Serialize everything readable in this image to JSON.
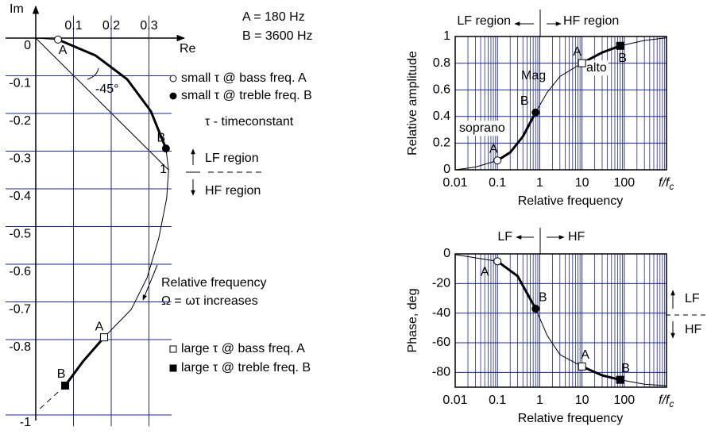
{
  "chart_data": [
    {
      "type": "line",
      "xlabel": "Re",
      "ylabel": "Im",
      "xlim": [
        -0.08,
        0.36
      ],
      "ylim": [
        -1.03,
        0.06
      ],
      "xticks": [
        0.1,
        0.2,
        0.3
      ],
      "yticks": [
        0,
        -0.1,
        -0.2,
        -0.3,
        -0.4,
        -0.5,
        -0.6,
        -0.7,
        -0.8,
        -1
      ],
      "grid": true,
      "grid_color": "#1f2a8f",
      "series": [
        {
          "color": "#000000",
          "width": 1,
          "x": [
            0,
            0.059,
            0.158,
            0.242,
            0.305,
            0.345,
            0.352,
            0.347,
            0.326,
            0.295,
            0.253,
            0.181,
            0.126,
            0.078
          ],
          "y": [
            0,
            -0.004,
            -0.046,
            -0.109,
            -0.194,
            -0.293,
            -0.35,
            -0.425,
            -0.531,
            -0.636,
            -0.72,
            -0.794,
            -0.857,
            -0.922
          ]
        },
        {
          "color": "#000000",
          "width": 3,
          "x": [
            0.059,
            0.158,
            0.242,
            0.305,
            0.345
          ],
          "y": [
            -0.004,
            -0.046,
            -0.109,
            -0.194,
            -0.293
          ]
        },
        {
          "color": "#000000",
          "width": 3,
          "x": [
            0.181,
            0.126,
            0.078
          ],
          "y": [
            -0.794,
            -0.857,
            -0.922
          ]
        },
        {
          "color": "#000000",
          "width": 1,
          "dash": true,
          "x": [
            0.078,
            0.004
          ],
          "y": [
            -0.922,
            -0.99
          ]
        }
      ],
      "points": [
        {
          "label": "A",
          "x": 0.059,
          "y": -0.004,
          "marker": "open-circle"
        },
        {
          "label": "B",
          "x": 0.345,
          "y": -0.293,
          "marker": "filled-circle"
        },
        {
          "label": "A",
          "x": 0.181,
          "y": -0.794,
          "marker": "open-square"
        },
        {
          "label": "B",
          "x": 0.078,
          "y": -0.922,
          "marker": "filled-square"
        }
      ],
      "annotations": [
        "A = 180 Hz",
        "B = 3600 Hz",
        "small τ @ bass freq. A",
        "small τ @ treble freq. B",
        "τ - timeconstant",
        "LF region",
        "HF region",
        "-45°",
        "1",
        "Relative frequency",
        "Ω = ωτ  increases",
        "large τ @ bass freq. A",
        "large τ @ treble freq. B"
      ]
    },
    {
      "type": "line",
      "xscale": "log",
      "xlabel": "Relative frequency",
      "ylabel": "Relative amplitude",
      "x_unit": {
        "base": "f/f",
        "sub": "c"
      },
      "xlim": [
        0.01,
        1000
      ],
      "ylim": [
        0,
        1
      ],
      "xticks": [
        0.01,
        0.1,
        1,
        10,
        100
      ],
      "yticks": [
        0,
        0.2,
        0.4,
        0.6,
        0.8,
        1
      ],
      "grid": true,
      "minor_grid": true,
      "grid_color": "#1f2a8f",
      "series": [
        {
          "color": "#000000",
          "width": 1,
          "x": [
            0.01,
            0.03,
            0.1,
            0.2,
            0.4,
            0.8,
            1.5,
            3,
            10,
            30,
            80,
            300,
            1000
          ],
          "y": [
            0,
            0.02,
            0.07,
            0.13,
            0.25,
            0.43,
            0.58,
            0.7,
            0.8,
            0.88,
            0.93,
            0.97,
            0.99
          ]
        },
        {
          "color": "#000000",
          "width": 3,
          "x": [
            0.1,
            0.2,
            0.4,
            0.8
          ],
          "y": [
            0.07,
            0.13,
            0.25,
            0.43
          ]
        },
        {
          "color": "#000000",
          "width": 3,
          "x": [
            10,
            30,
            80
          ],
          "y": [
            0.8,
            0.88,
            0.93
          ]
        }
      ],
      "points": [
        {
          "label": "A",
          "x": 0.1,
          "y": 0.07,
          "marker": "open-circle"
        },
        {
          "label": "B",
          "x": 0.8,
          "y": 0.43,
          "marker": "filled-circle"
        },
        {
          "label": "A",
          "x": 10,
          "y": 0.8,
          "marker": "open-square"
        },
        {
          "label": "B",
          "x": 80,
          "y": 0.93,
          "marker": "filled-square"
        }
      ],
      "annotations": [
        "LF region",
        "HF region",
        "Mag",
        "soprano",
        "alto"
      ]
    },
    {
      "type": "line",
      "xscale": "log",
      "xlabel": "Relative frequency",
      "ylabel": "Phase, deg",
      "x_unit": {
        "base": "f/f",
        "sub": "c"
      },
      "xlim": [
        0.01,
        1000
      ],
      "ylim": [
        -90,
        0
      ],
      "xticks": [
        0.01,
        0.1,
        1,
        10,
        100
      ],
      "yticks": [
        0,
        -20,
        -40,
        -60,
        -80
      ],
      "grid": true,
      "minor_grid": true,
      "grid_color": "#1f2a8f",
      "series": [
        {
          "color": "#000000",
          "width": 1,
          "x": [
            0.01,
            0.1,
            0.3,
            0.8,
            1.5,
            3,
            10,
            30,
            80,
            300,
            1000
          ],
          "y": [
            -0.5,
            -5,
            -15,
            -37,
            -55,
            -68,
            -76,
            -82,
            -85,
            -88,
            -89
          ]
        },
        {
          "color": "#000000",
          "width": 3,
          "x": [
            0.1,
            0.3,
            0.8
          ],
          "y": [
            -5,
            -15,
            -37
          ]
        },
        {
          "color": "#000000",
          "width": 3,
          "x": [
            10,
            30,
            80
          ],
          "y": [
            -76,
            -82,
            -85
          ]
        }
      ],
      "points": [
        {
          "label": "A",
          "x": 0.1,
          "y": -5,
          "marker": "open-circle"
        },
        {
          "label": "B",
          "x": 0.8,
          "y": -37,
          "marker": "filled-circle"
        },
        {
          "label": "A",
          "x": 10,
          "y": -76,
          "marker": "open-square"
        },
        {
          "label": "B",
          "x": 80,
          "y": -85,
          "marker": "filled-square"
        }
      ],
      "annotations": [
        "LF",
        "HF",
        "LF",
        "HF"
      ]
    }
  ]
}
